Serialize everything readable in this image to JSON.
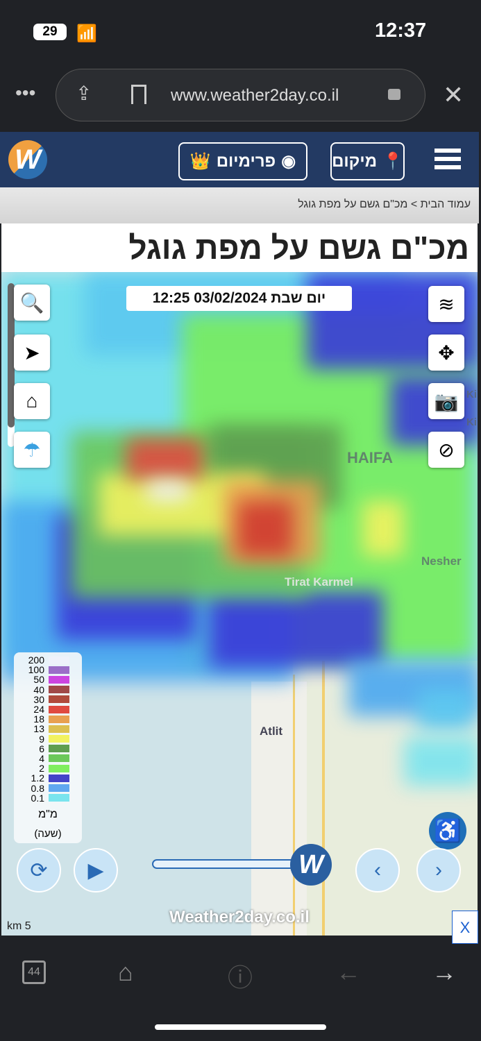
{
  "status": {
    "battery": "29",
    "time": "12:37"
  },
  "browser": {
    "url": "www.weather2day.co.il",
    "tabs_count": "44"
  },
  "nav": {
    "premium_label": "פרימיום",
    "location_label": "מיקום"
  },
  "breadcrumb": {
    "home": "עמוד הבית",
    "separator": ">",
    "current": "מכ\"ם גשם על מפת גוגל"
  },
  "page": {
    "title": "מכ\"ם גשם על מפת גוגל"
  },
  "map": {
    "timestamp": "יום שבת 03/02/2024 12:25",
    "labels": {
      "haifa": "HAIFA",
      "nesher": "Nesher",
      "tirat": "Tirat Karmel",
      "atlit": "Atlit",
      "ki1": "Ki",
      "ki2": "Ki"
    },
    "scale": "km 5",
    "watermark": "Weather2day.co.il",
    "ad_close": "X",
    "legend": {
      "items": [
        {
          "value": "200",
          "color": "#eef2fb"
        },
        {
          "value": "100",
          "color": "#9b6ec8"
        },
        {
          "value": "50",
          "color": "#cc44e0"
        },
        {
          "value": "40",
          "color": "#a04848"
        },
        {
          "value": "30",
          "color": "#b04a3c"
        },
        {
          "value": "24",
          "color": "#e04a40"
        },
        {
          "value": "18",
          "color": "#e8a050"
        },
        {
          "value": "13",
          "color": "#dcc050"
        },
        {
          "value": "9",
          "color": "#f2f260"
        },
        {
          "value": "6",
          "color": "#5e9e50"
        },
        {
          "value": "4",
          "color": "#6cc85a"
        },
        {
          "value": "2",
          "color": "#80ee60"
        },
        {
          "value": "1.2",
          "color": "#4444c8"
        },
        {
          "value": "0.8",
          "color": "#60a8f0"
        },
        {
          "value": "0.1",
          "color": "#7ae4ee"
        }
      ],
      "unit": "מ\"מ",
      "period": "(שעה)"
    },
    "slider_progress": 100
  }
}
